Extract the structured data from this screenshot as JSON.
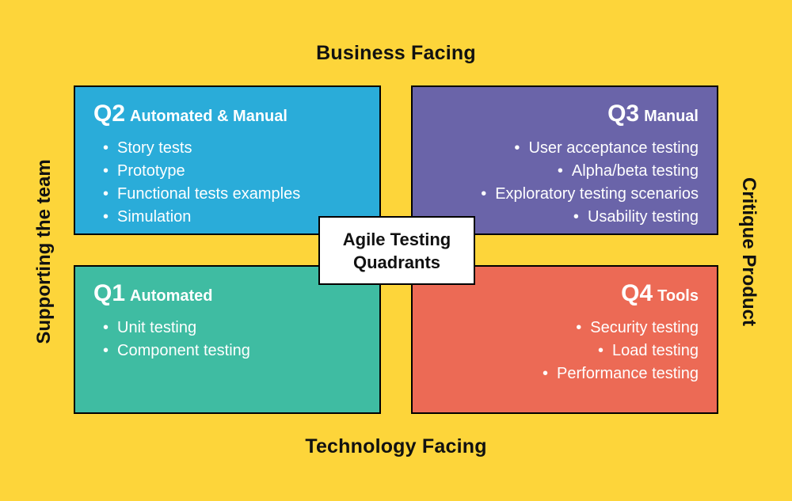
{
  "diagram": {
    "center_title": "Agile Testing\nQuadrants",
    "axes": {
      "top": "Business Facing",
      "bottom": "Technology Facing",
      "left": "Supporting the team",
      "right": "Critique Product"
    },
    "quadrants": [
      {
        "id": "Q2",
        "subtitle": "Automated & Manual",
        "color": "#2AACD9",
        "align": "left",
        "items": [
          "Story tests",
          "Prototype",
          "Functional tests examples",
          "Simulation"
        ]
      },
      {
        "id": "Q3",
        "subtitle": "Manual",
        "color": "#6A64A9",
        "align": "right",
        "items": [
          "User acceptance testing",
          "Alpha/beta testing",
          "Exploratory testing scenarios",
          "Usability testing"
        ]
      },
      {
        "id": "Q1",
        "subtitle": "Automated",
        "color": "#3FBCA2",
        "align": "left",
        "items": [
          "Unit testing",
          "Component testing"
        ]
      },
      {
        "id": "Q4",
        "subtitle": "Tools",
        "color": "#EC6A55",
        "align": "right",
        "items": [
          "Security testing",
          "Load testing",
          "Performance testing"
        ]
      }
    ],
    "colors": {
      "background": "#FDD53A",
      "quadrant_text": "#FFFFFF",
      "axis_text": "#111111",
      "border": "#000000",
      "center_box_bg": "#FFFFFF"
    }
  }
}
